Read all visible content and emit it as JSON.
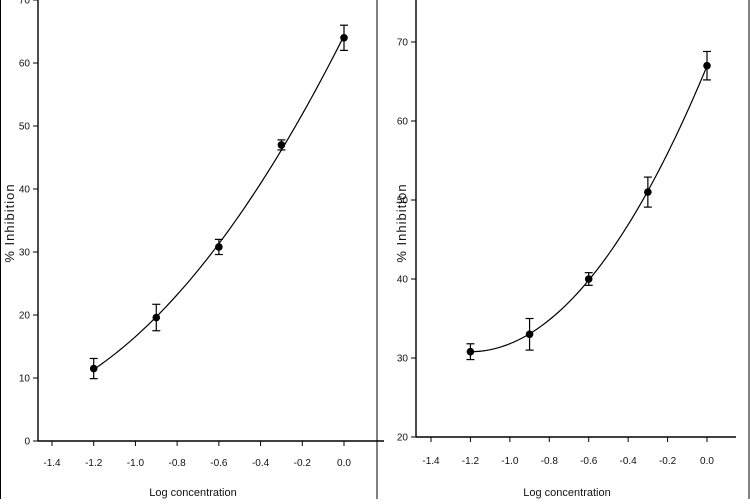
{
  "chart_data": [
    {
      "type": "scatter",
      "xlabel": "Log concentration",
      "ylabel": "% Inhibition",
      "xlim": [
        -1.4,
        0.2
      ],
      "ylim": [
        0,
        70
      ],
      "xticks": [
        "-1.4",
        "-1.2",
        "-1.0",
        "-0.8",
        "-0.6",
        "-0.4",
        "-0.2",
        "0.0"
      ],
      "yticks": [
        "0",
        "10",
        "20",
        "30",
        "40",
        "50",
        "60",
        "70"
      ],
      "grid": false,
      "series": [
        {
          "x": [
            -1.2,
            -0.9,
            -0.6,
            -0.3,
            0.0
          ],
          "y": [
            11.5,
            19.6,
            30.8,
            47.0,
            64.0
          ],
          "error": [
            1.6,
            2.1,
            1.2,
            0.8,
            2.0
          ],
          "fit_curve": "quadratic"
        }
      ]
    },
    {
      "type": "scatter",
      "xlabel": "Log concentration",
      "ylabel": "% Inhibition",
      "xlim": [
        -1.4,
        0.2
      ],
      "ylim": [
        20,
        80
      ],
      "xticks": [
        "-1.4",
        "-1.2",
        "-1.0",
        "-0.8",
        "-0.6",
        "-0.4",
        "-0.2",
        "0.0"
      ],
      "yticks": [
        "20",
        "30",
        "40",
        "50",
        "60",
        "70"
      ],
      "grid": false,
      "series": [
        {
          "x": [
            -1.2,
            -0.9,
            -0.6,
            -0.3,
            0.0
          ],
          "y": [
            30.8,
            33.0,
            40.0,
            51.0,
            67.0
          ],
          "error": [
            1.0,
            2.0,
            0.8,
            1.9,
            1.8
          ],
          "fit_curve": "quadratic"
        }
      ]
    }
  ]
}
